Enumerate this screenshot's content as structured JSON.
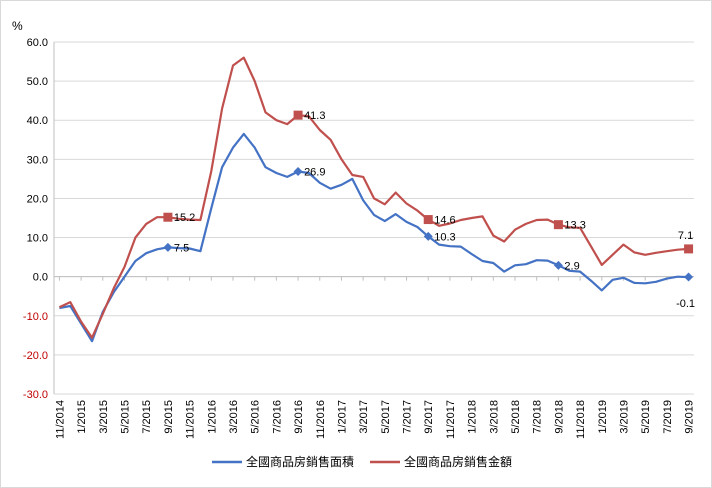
{
  "chart_data": {
    "type": "line",
    "y_unit": "%",
    "ylim": [
      -30,
      60
    ],
    "ytick_step": 10,
    "yticks": [
      "60.0",
      "50.0",
      "40.0",
      "30.0",
      "20.0",
      "10.0",
      "0.0",
      "-10.0",
      "-20.0",
      "-30.0"
    ],
    "grid": "horizontal",
    "legend_position": "bottom",
    "x": [
      "11/2014",
      "12/2014",
      "1/2015",
      "2/2015",
      "3/2015",
      "4/2015",
      "5/2015",
      "6/2015",
      "7/2015",
      "8/2015",
      "9/2015",
      "10/2015",
      "11/2015",
      "12/2015",
      "1/2016",
      "2/2016",
      "3/2016",
      "4/2016",
      "5/2016",
      "6/2016",
      "7/2016",
      "8/2016",
      "9/2016",
      "10/2016",
      "11/2016",
      "12/2016",
      "1/2017",
      "2/2017",
      "3/2017",
      "4/2017",
      "5/2017",
      "6/2017",
      "7/2017",
      "8/2017",
      "9/2017",
      "10/2017",
      "11/2017",
      "12/2017",
      "1/2018",
      "2/2018",
      "3/2018",
      "4/2018",
      "5/2018",
      "6/2018",
      "7/2018",
      "8/2018",
      "9/2018",
      "10/2018",
      "11/2018",
      "12/2018",
      "1/2019",
      "2/2019",
      "3/2019",
      "4/2019",
      "5/2019",
      "6/2019",
      "7/2019",
      "8/2019",
      "9/2019"
    ],
    "x_tick_labels": [
      "11/2014",
      "1/2015",
      "3/2015",
      "5/2015",
      "7/2015",
      "9/2015",
      "11/2015",
      "1/2016",
      "3/2016",
      "5/2016",
      "7/2016",
      "9/2016",
      "11/2016",
      "1/2017",
      "3/2017",
      "5/2017",
      "7/2017",
      "9/2017",
      "11/2017",
      "1/2018",
      "3/2018",
      "5/2018",
      "7/2018",
      "9/2018",
      "11/2018",
      "1/2019",
      "3/2019",
      "5/2019",
      "7/2019",
      "9/2019"
    ],
    "series": [
      {
        "name": "全國商品房銷售面積",
        "color": "#4472c4",
        "marker": "diamond",
        "values": [
          -8.0,
          -7.5,
          -12.0,
          -16.5,
          -9.0,
          -4.0,
          0.0,
          4.0,
          6.0,
          7.0,
          7.5,
          7.3,
          7.2,
          6.5,
          17.5,
          28.0,
          33.0,
          36.5,
          33.0,
          28.0,
          26.5,
          25.5,
          26.9,
          26.5,
          24.0,
          22.5,
          23.5,
          25.0,
          19.5,
          15.8,
          14.2,
          16.0,
          14.0,
          12.7,
          10.3,
          8.2,
          7.8,
          7.7,
          5.8,
          4.0,
          3.5,
          1.3,
          2.9,
          3.2,
          4.2,
          4.1,
          2.9,
          1.5,
          1.3,
          -1.0,
          -3.5,
          -0.8,
          -0.3,
          -1.6,
          -1.7,
          -1.3,
          -0.5,
          0.0,
          -0.1
        ]
      },
      {
        "name": "全國商品房銷售金額",
        "color": "#c0504d",
        "marker": "square",
        "values": [
          -7.8,
          -6.5,
          -11.5,
          -15.6,
          -9.5,
          -3.0,
          2.5,
          10.0,
          13.5,
          15.2,
          15.2,
          14.8,
          14.6,
          14.5,
          27.0,
          43.0,
          54.0,
          56.0,
          50.0,
          42.0,
          40.0,
          39.0,
          41.3,
          41.0,
          37.5,
          35.0,
          30.0,
          26.0,
          25.5,
          20.0,
          18.5,
          21.5,
          18.7,
          16.9,
          14.6,
          13.0,
          13.6,
          14.5,
          15.0,
          15.4,
          10.5,
          9.0,
          12.0,
          13.5,
          14.5,
          14.6,
          13.3,
          12.6,
          12.5,
          7.8,
          3.0,
          5.6,
          8.2,
          6.2,
          5.6,
          6.1,
          6.5,
          6.9,
          7.1
        ]
      }
    ],
    "data_labels": [
      {
        "series": 0,
        "index": 10,
        "text": "7.5"
      },
      {
        "series": 0,
        "index": 22,
        "text": "26.9"
      },
      {
        "series": 0,
        "index": 34,
        "text": "10.3"
      },
      {
        "series": 0,
        "index": 46,
        "text": "2.9"
      },
      {
        "series": 0,
        "index": 58,
        "text": "-0.1"
      },
      {
        "series": 1,
        "index": 10,
        "text": "15.2"
      },
      {
        "series": 1,
        "index": 22,
        "text": "41.3"
      },
      {
        "series": 1,
        "index": 34,
        "text": "14.6"
      },
      {
        "series": 1,
        "index": 46,
        "text": "13.3"
      },
      {
        "series": 1,
        "index": 58,
        "text": "7.1"
      }
    ],
    "legend": [
      "全國商品房銷售面積",
      "全國商品房銷售金額"
    ]
  }
}
